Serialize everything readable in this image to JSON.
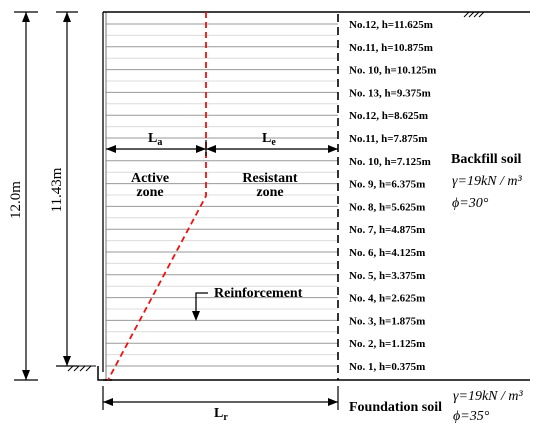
{
  "dimensions": {
    "total_height": "12.0m",
    "wall_height": "11.43m"
  },
  "lengths": {
    "active": "L",
    "active_sub": "a",
    "resistant": "L",
    "resistant_sub": "e",
    "total": "L",
    "total_sub": "r"
  },
  "zones": {
    "active_line1": "Active",
    "active_line2": "zone",
    "resistant_line1": "Resistant",
    "resistant_line2": "zone"
  },
  "reinforcement_label": "Reinforcement",
  "layers": [
    "No.12, h=11.625m",
    "No.11, h=10.875m",
    "No. 10, h=10.125m",
    "No. 13, h=9.375m",
    "No.12, h=8.625m",
    "No.11, h=7.875m",
    "No. 10, h=7.125m",
    "No. 9, h=6.375m",
    "No. 8, h=5.625m",
    "No. 7, h=4.875m",
    "No. 6, h=4.125m",
    "No. 5, h=3.375m",
    "No. 4, h=2.625m",
    "No. 3, h=1.875m",
    "No. 2, h=1.125m",
    "No. 1, h=0.375m"
  ],
  "backfill": {
    "title": "Backfill soil",
    "gamma": "γ=19kN / m³",
    "phi": "ϕ=30°"
  },
  "foundation": {
    "title": "Foundation soil",
    "gamma": "γ=19kN / m³",
    "phi": "ϕ=35°"
  }
}
